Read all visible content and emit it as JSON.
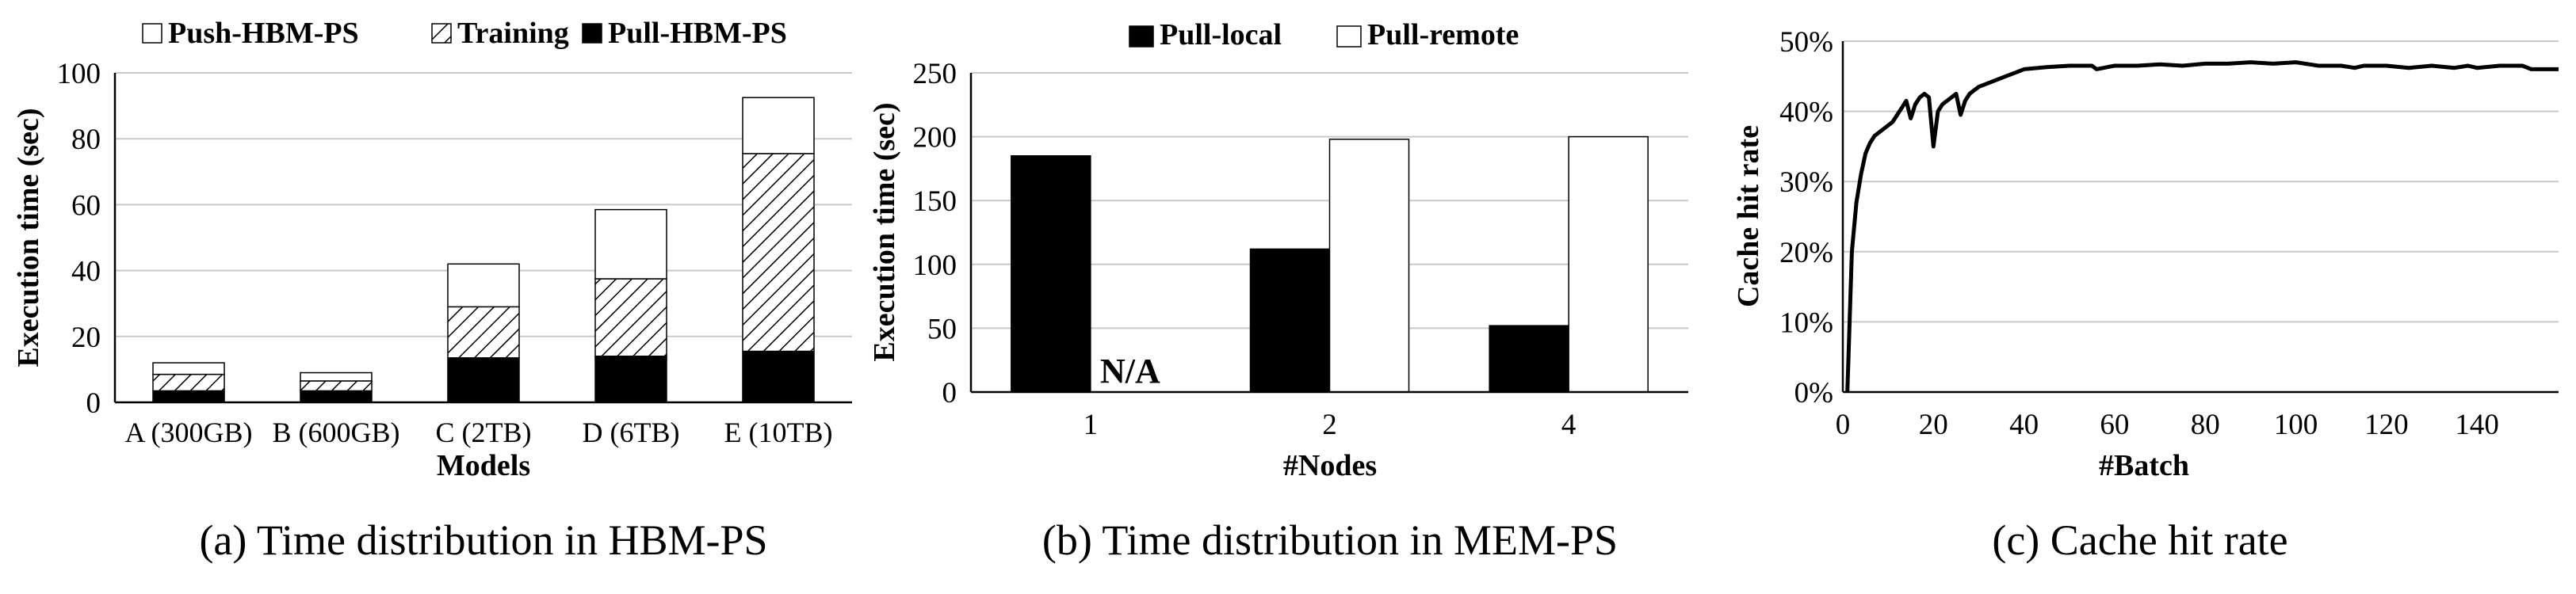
{
  "chart_data": [
    {
      "type": "bar",
      "stacked": true,
      "caption": "(a) Time distribution in HBM-PS",
      "xlabel": "Models",
      "ylabel": "Execution time (sec)",
      "categories": [
        "A (300GB)",
        "B (600GB)",
        "C (2TB)",
        "D (6TB)",
        "E (10TB)"
      ],
      "ylim": [
        0,
        100
      ],
      "yticks": [
        "0",
        "20",
        "40",
        "60",
        "80",
        "100"
      ],
      "legend_position": "top",
      "grid": true,
      "series": [
        {
          "name": "Pull-HBM-PS",
          "values": [
            3.5,
            3.5,
            13.5,
            14,
            15.5
          ],
          "fill": "black"
        },
        {
          "name": "Training",
          "values": [
            5,
            3,
            15.5,
            23.5,
            60
          ],
          "fill": "hatch"
        },
        {
          "name": "Push-HBM-PS",
          "values": [
            3.5,
            2.5,
            13,
            21,
            17
          ],
          "fill": "white"
        }
      ]
    },
    {
      "type": "bar",
      "caption": "(b) Time distribution in MEM-PS",
      "xlabel": "#Nodes",
      "ylabel": "Execution time (sec)",
      "categories": [
        "1",
        "2",
        "4"
      ],
      "ylim": [
        0,
        250
      ],
      "yticks": [
        "0",
        "50",
        "100",
        "150",
        "200",
        "250"
      ],
      "legend_position": "top",
      "grid": true,
      "series": [
        {
          "name": "Pull-local",
          "values": [
            185,
            112,
            52
          ],
          "fill": "black"
        },
        {
          "name": "Pull-remote",
          "values": [
            null,
            198,
            200
          ],
          "fill": "white"
        }
      ],
      "annotations": [
        {
          "text": "N/A",
          "category": "1",
          "series": "Pull-remote"
        }
      ]
    },
    {
      "type": "line",
      "caption": "(c) Cache hit rate",
      "xlabel": "#Batch",
      "ylabel": "Cache hit rate",
      "xlim": [
        0,
        158
      ],
      "ylim": [
        0,
        50
      ],
      "xticks": [
        "0",
        "20",
        "40",
        "60",
        "80",
        "100",
        "120",
        "140"
      ],
      "yticks": [
        "0%",
        "10%",
        "20%",
        "30%",
        "40%",
        "50%"
      ],
      "grid": true,
      "series": [
        {
          "x": [
            1,
            2,
            3,
            4,
            5,
            6,
            7,
            8,
            9,
            10,
            11,
            12,
            13,
            14,
            15,
            16,
            17,
            18,
            19,
            20,
            21,
            22,
            23,
            24,
            25,
            26,
            27,
            28,
            29,
            30,
            32,
            34,
            36,
            38,
            40,
            45,
            50,
            55,
            56,
            60,
            65,
            70,
            75,
            80,
            85,
            90,
            95,
            100,
            105,
            110,
            113,
            115,
            120,
            125,
            130,
            135,
            138,
            140,
            145,
            150,
            152,
            155,
            158
          ],
          "y": [
            0,
            20,
            27,
            31,
            34,
            35.5,
            36.5,
            37,
            37.5,
            38,
            38.5,
            39.5,
            40.5,
            41.5,
            39,
            41,
            42,
            42.5,
            42,
            35,
            40,
            41,
            41.5,
            42,
            42.5,
            39.5,
            41.5,
            42.5,
            43,
            43.5,
            44,
            44.5,
            45,
            45.5,
            46,
            46.3,
            46.5,
            46.5,
            46,
            46.5,
            46.5,
            46.7,
            46.5,
            46.8,
            46.8,
            47,
            46.8,
            47,
            46.5,
            46.5,
            46.2,
            46.5,
            46.5,
            46.2,
            46.5,
            46.2,
            46.5,
            46.2,
            46.5,
            46.5,
            46,
            46,
            46
          ]
        }
      ]
    }
  ]
}
